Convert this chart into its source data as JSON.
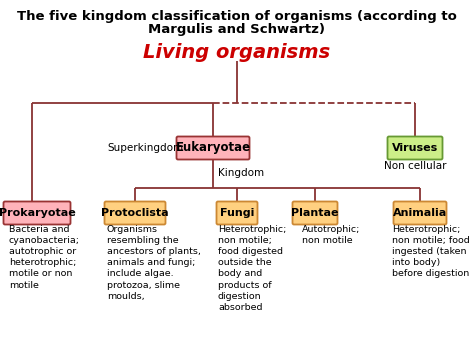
{
  "title_line1": "The five kingdom classification of organisms (according to",
  "title_line2": "Margulis and Schwartz)",
  "living_organisms": "Living organisms",
  "superkingdom_label": "Superkingdom",
  "kingdom_label": "Kingdom",
  "eukaryotae": "Eukaryotae",
  "viruses": "Viruses",
  "non_cellular": "Non cellular",
  "kingdoms": [
    "Prokaryotae",
    "Protoclista",
    "Fungi",
    "Plantae",
    "Animalia"
  ],
  "descriptions": [
    "Bacteria and\ncyanobacteria;\nautotrophic or\nheterotrophic;\nmotile or non\nmotile",
    "Organisms\nresembling the\nancestors of plants,\nanimals and fungi;\ninclude algae.\nprotozoa, slime\nmoulds,",
    "Heterotrophic;\nnon motile;\nfood digested\noutside the\nbody and\nproducts of\ndigestion\nabsorbed",
    "Autotrophic;\nnon motile",
    "Heterotrophic;\nnon motile; food\ningested (taken\ninto body)\nbefore digestion"
  ],
  "eukaryotae_box_facecolor": "#ffb3ba",
  "eukaryotae_box_edgecolor": "#993333",
  "viruses_box_facecolor": "#ccee88",
  "viruses_box_edgecolor": "#669933",
  "prokaryotae_box_facecolor": "#ffb3ba",
  "prokaryotae_box_edgecolor": "#993333",
  "kingdom_box_facecolor": "#ffd080",
  "kingdom_box_edgecolor": "#cc8833",
  "line_color": "#883333",
  "living_color": "#cc0000",
  "bg_color": "#ffffff",
  "title_fontsize": 9.5,
  "living_fontsize": 14,
  "label_fontsize": 7.5,
  "kingdom_name_fontsize": 8,
  "desc_fontsize": 6.8
}
